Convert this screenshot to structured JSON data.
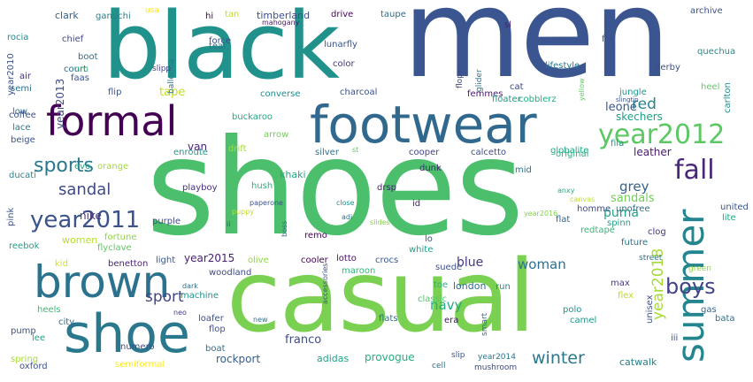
{
  "cloud": {
    "words": [
      {
        "text": "shoes",
        "color": "#4cbf6d",
        "rotate": false
      },
      {
        "text": "men",
        "color": "#3b5590",
        "rotate": false
      },
      {
        "text": "black",
        "color": "#21918c",
        "rotate": false
      },
      {
        "text": "casual",
        "color": "#7ad151",
        "rotate": false
      },
      {
        "text": "footwear",
        "color": "#31688e",
        "rotate": false
      },
      {
        "text": "formal",
        "color": "#440154",
        "rotate": false
      },
      {
        "text": "brown",
        "color": "#2c728e",
        "rotate": false
      },
      {
        "text": "shoe",
        "color": "#2a788e",
        "rotate": false
      },
      {
        "text": "summer",
        "color": "#25858e",
        "rotate": true
      },
      {
        "text": "year2012",
        "color": "#5cc863",
        "rotate": false
      },
      {
        "text": "year2011",
        "color": "#3b528b",
        "rotate": false
      },
      {
        "text": "sports",
        "color": "#29798e",
        "rotate": false
      },
      {
        "text": "fall",
        "color": "#482878",
        "rotate": false
      },
      {
        "text": "sandal",
        "color": "#3e4a89",
        "rotate": false
      },
      {
        "text": "boys",
        "color": "#414487",
        "rotate": false
      },
      {
        "text": "winter",
        "color": "#2a788e",
        "rotate": false
      },
      {
        "text": "year2018",
        "color": "#a5db36",
        "rotate": true
      },
      {
        "text": "sport",
        "color": "#404688",
        "rotate": false
      },
      {
        "text": "navy",
        "color": "#23a983",
        "rotate": false
      },
      {
        "text": "red",
        "color": "#25838e",
        "rotate": false
      },
      {
        "text": "blue",
        "color": "#443983",
        "rotate": false
      },
      {
        "text": "grey",
        "color": "#34618d",
        "rotate": false
      },
      {
        "text": "woman",
        "color": "#2d708e",
        "rotate": false
      },
      {
        "text": "leone",
        "color": "#38588c",
        "rotate": false
      },
      {
        "text": "year2013",
        "color": "#3e4989",
        "rotate": true
      },
      {
        "text": "tape",
        "color": "#c2df23",
        "rotate": false
      },
      {
        "text": "puma",
        "color": "#1f9e89",
        "rotate": false
      },
      {
        "text": "sandals",
        "color": "#70cf57",
        "rotate": false
      },
      {
        "text": "nike",
        "color": "#46327e",
        "rotate": false
      },
      {
        "text": "leather",
        "color": "#481b6d",
        "rotate": false
      },
      {
        "text": "skechers",
        "color": "#1fa088",
        "rotate": false
      },
      {
        "text": "franco",
        "color": "#3e4c8a",
        "rotate": false
      },
      {
        "text": "rockport",
        "color": "#355e8d",
        "rotate": false
      },
      {
        "text": "provogue",
        "color": "#26ad81",
        "rotate": false
      },
      {
        "text": "adidas",
        "color": "#20a486",
        "rotate": false
      },
      {
        "text": "year2015",
        "color": "#482173",
        "rotate": false
      },
      {
        "text": "women",
        "color": "#b5de2b",
        "rotate": false
      },
      {
        "text": "heels",
        "color": "#38b977",
        "rotate": false
      },
      {
        "text": "woodland",
        "color": "#3e4a89",
        "rotate": false
      },
      {
        "text": "london",
        "color": "#2f6c8e",
        "rotate": false
      },
      {
        "text": "khaki",
        "color": "#22a785",
        "rotate": false
      },
      {
        "text": "fila",
        "color": "#1f988b",
        "rotate": false
      },
      {
        "text": "chief",
        "color": "#3f4889",
        "rotate": false
      },
      {
        "text": "clark",
        "color": "#33638d",
        "rotate": false
      },
      {
        "text": "timberland",
        "color": "#3d4e8a",
        "rotate": false
      },
      {
        "text": "van",
        "color": "#482475",
        "rotate": false
      },
      {
        "text": "enroute",
        "color": "#1f9a8a",
        "rotate": false
      },
      {
        "text": "arrow",
        "color": "#73d056",
        "rotate": false
      },
      {
        "text": "buckaroo",
        "color": "#22a884",
        "rotate": false
      },
      {
        "text": "cooper",
        "color": "#414487",
        "rotate": false
      },
      {
        "text": "olive",
        "color": "#90d743",
        "rotate": false
      },
      {
        "text": "cooler",
        "color": "#440154",
        "rotate": false
      },
      {
        "text": "white",
        "color": "#1fa187",
        "rotate": false
      },
      {
        "text": "crocs",
        "color": "#39568c",
        "rotate": false
      },
      {
        "text": "lotto",
        "color": "#471063",
        "rotate": false
      },
      {
        "text": "maroon",
        "color": "#31b57b",
        "rotate": false
      },
      {
        "text": "flats",
        "color": "#2d718e",
        "rotate": false
      },
      {
        "text": "classic",
        "color": "#52c569",
        "rotate": false
      },
      {
        "text": "run",
        "color": "#23898e",
        "rotate": false
      },
      {
        "text": "toe",
        "color": "#29af7f",
        "rotate": false
      },
      {
        "text": "suede",
        "color": "#3c508b",
        "rotate": false
      },
      {
        "text": "era",
        "color": "#481467",
        "rotate": false
      },
      {
        "text": "polo",
        "color": "#20928c",
        "rotate": false
      },
      {
        "text": "camel",
        "color": "#1f988b",
        "rotate": false
      },
      {
        "text": "catwalk",
        "color": "#27808e",
        "rotate": false
      },
      {
        "text": "unisex",
        "color": "#3b528b",
        "rotate": true
      },
      {
        "text": "clog",
        "color": "#46327e",
        "rotate": false
      },
      {
        "text": "spinn",
        "color": "#1fa088",
        "rotate": false
      },
      {
        "text": "future",
        "color": "#2c738e",
        "rotate": false
      },
      {
        "text": "flat",
        "color": "#33638d",
        "rotate": false
      },
      {
        "text": "homme",
        "color": "#3d4d8a",
        "rotate": false
      },
      {
        "text": "redtape",
        "color": "#35b779",
        "rotate": false
      },
      {
        "text": "lifestyle",
        "color": "#2a788e",
        "rotate": false
      },
      {
        "text": "jungle",
        "color": "#1f978b",
        "rotate": false
      },
      {
        "text": "carlton",
        "color": "#218e8d",
        "rotate": true
      },
      {
        "text": "quechua",
        "color": "#228d8d",
        "rotate": false
      },
      {
        "text": "derby",
        "color": "#3d4e8a",
        "rotate": false
      },
      {
        "text": "archive",
        "color": "#3b528b",
        "rotate": false
      },
      {
        "text": "heel",
        "color": "#5ec962",
        "rotate": false
      },
      {
        "text": "lunarfly",
        "color": "#3a548c",
        "rotate": false
      },
      {
        "text": "drive",
        "color": "#450457",
        "rotate": false
      },
      {
        "text": "taupe",
        "color": "#2e6f8e",
        "rotate": false
      },
      {
        "text": "color",
        "color": "#46337f",
        "rotate": false
      },
      {
        "text": "charcoal",
        "color": "#3c4f8a",
        "rotate": false
      },
      {
        "text": "converse",
        "color": "#228c8d",
        "rotate": false
      },
      {
        "text": "femmes",
        "color": "#481769",
        "rotate": false
      },
      {
        "text": "floater",
        "color": "#1f978b",
        "rotate": false
      },
      {
        "text": "cobblerz",
        "color": "#25ac82",
        "rotate": false
      },
      {
        "text": "globalite",
        "color": "#22a785",
        "rotate": false
      },
      {
        "text": "original",
        "color": "#2ab07f",
        "rotate": false
      },
      {
        "text": "calcetto",
        "color": "#3e4c8a",
        "rotate": false
      },
      {
        "text": "silver",
        "color": "#2c728e",
        "rotate": false
      },
      {
        "text": "dunk",
        "color": "#482475",
        "rotate": false
      },
      {
        "text": "mid",
        "color": "#2d718e",
        "rotate": false
      },
      {
        "text": "drsp",
        "color": "#481f70",
        "rotate": false
      },
      {
        "text": "id",
        "color": "#481b6d",
        "rotate": false
      },
      {
        "text": "lo",
        "color": "#3b528b",
        "rotate": false
      },
      {
        "text": "remo",
        "color": "#440154",
        "rotate": false
      },
      {
        "text": "hush",
        "color": "#2db27d",
        "rotate": false
      },
      {
        "text": "playboy",
        "color": "#472d7b",
        "rotate": false
      },
      {
        "text": "purple",
        "color": "#3e4989",
        "rotate": false
      },
      {
        "text": "fortune",
        "color": "#8ed645",
        "rotate": false
      },
      {
        "text": "flyclave",
        "color": "#5dc863",
        "rotate": false
      },
      {
        "text": "benetton",
        "color": "#482475",
        "rotate": false
      },
      {
        "text": "light",
        "color": "#39568c",
        "rotate": false
      },
      {
        "text": "reebok",
        "color": "#1fa088",
        "rotate": false
      },
      {
        "text": "kid",
        "color": "#d8e219",
        "rotate": false
      },
      {
        "text": "pink",
        "color": "#3b528b",
        "rotate": true
      },
      {
        "text": "ducati",
        "color": "#23888e",
        "rotate": false
      },
      {
        "text": "beige",
        "color": "#3a538b",
        "rotate": false
      },
      {
        "text": "lace",
        "color": "#2a788e",
        "rotate": false
      },
      {
        "text": "low",
        "color": "#2c738e",
        "rotate": false
      },
      {
        "text": "coffee",
        "color": "#3c4f8a",
        "rotate": false
      },
      {
        "text": "semi",
        "color": "#2c728e",
        "rotate": false
      },
      {
        "text": "year2010",
        "color": "#3b528b",
        "rotate": true
      },
      {
        "text": "air",
        "color": "#472d7b",
        "rotate": false
      },
      {
        "text": "rocia",
        "color": "#228b8d",
        "rotate": false
      },
      {
        "text": "court",
        "color": "#2f6b8e",
        "rotate": false
      },
      {
        "text": "nm",
        "color": "#37b878",
        "rotate": false
      },
      {
        "text": "boot",
        "color": "#2e6f8e",
        "rotate": false
      },
      {
        "text": "faas",
        "color": "#3a548c",
        "rotate": false
      },
      {
        "text": "flip",
        "color": "#39568c",
        "rotate": false
      },
      {
        "text": "evo",
        "color": "#22a785",
        "rotate": false
      },
      {
        "text": "orange",
        "color": "#a5db36",
        "rotate": false
      },
      {
        "text": "ganuchi",
        "color": "#26818e",
        "rotate": false
      },
      {
        "text": "hi",
        "color": "#440154",
        "rotate": false
      },
      {
        "text": "tan",
        "color": "#c2df23",
        "rotate": false
      },
      {
        "text": "force",
        "color": "#3b528b",
        "rotate": false
      },
      {
        "text": "teal",
        "color": "#2c728e",
        "rotate": false
      },
      {
        "text": "ballerina",
        "color": "#2a768e",
        "rotate": true
      },
      {
        "text": "slipp",
        "color": "#414487",
        "rotate": false
      },
      {
        "text": "usa",
        "color": "#fde725",
        "rotate": false
      },
      {
        "text": "mahogany",
        "color": "#481a6c",
        "rotate": false
      },
      {
        "text": "sl",
        "color": "#482173",
        "rotate": false
      },
      {
        "text": "fly",
        "color": "#3b528b",
        "rotate": false
      },
      {
        "text": "cat",
        "color": "#3f4788",
        "rotate": false
      },
      {
        "text": "glider",
        "color": "#2b758e",
        "rotate": true
      },
      {
        "text": "flops",
        "color": "#3f4889",
        "rotate": true
      },
      {
        "text": "yellow",
        "color": "#5ec962",
        "rotate": true
      },
      {
        "text": "slingtip",
        "color": "#3b528b",
        "rotate": false
      },
      {
        "text": "anxy",
        "color": "#27ad81",
        "rotate": false
      },
      {
        "text": "canvas",
        "color": "#bade28",
        "rotate": false
      },
      {
        "text": "unofree",
        "color": "#2c728e",
        "rotate": false
      },
      {
        "text": "year2016",
        "color": "#84d44b",
        "rotate": false
      },
      {
        "text": "numero",
        "color": "#3e4a89",
        "rotate": false
      },
      {
        "text": "dark",
        "color": "#2d708e",
        "rotate": false
      },
      {
        "text": "machine",
        "color": "#21918c",
        "rotate": false
      },
      {
        "text": "loafer",
        "color": "#3b528b",
        "rotate": false
      },
      {
        "text": "flop",
        "color": "#3b528b",
        "rotate": false
      },
      {
        "text": "boat",
        "color": "#2e6e8e",
        "rotate": false
      },
      {
        "text": "neo",
        "color": "#433e85",
        "rotate": false
      },
      {
        "text": "new",
        "color": "#2c728e",
        "rotate": false
      },
      {
        "text": "city",
        "color": "#2f6c8e",
        "rotate": false
      },
      {
        "text": "lee",
        "color": "#20a486",
        "rotate": false
      },
      {
        "text": "pump",
        "color": "#3a548c",
        "rotate": false
      },
      {
        "text": "spring",
        "color": "#a5db36",
        "rotate": false
      },
      {
        "text": "oxford",
        "color": "#3b528b",
        "rotate": false
      },
      {
        "text": "semiformal",
        "color": "#fde725",
        "rotate": false
      },
      {
        "text": "cell",
        "color": "#2d708e",
        "rotate": false
      },
      {
        "text": "slip",
        "color": "#3b528b",
        "rotate": false
      },
      {
        "text": "year2014",
        "color": "#2a768e",
        "rotate": false
      },
      {
        "text": "mushroom",
        "color": "#3e4989",
        "rotate": false
      },
      {
        "text": "smart",
        "color": "#2f6c8e",
        "rotate": true
      },
      {
        "text": "max",
        "color": "#433e85",
        "rotate": false
      },
      {
        "text": "flex",
        "color": "#bade28",
        "rotate": false
      },
      {
        "text": "street",
        "color": "#2c728e",
        "rotate": false
      },
      {
        "text": "green",
        "color": "#8ed645",
        "rotate": false
      },
      {
        "text": "gas",
        "color": "#31688e",
        "rotate": false
      },
      {
        "text": "bata",
        "color": "#2c728e",
        "rotate": false
      },
      {
        "text": "iii",
        "color": "#3b528b",
        "rotate": false
      },
      {
        "text": "united",
        "color": "#3b528b",
        "rotate": false
      },
      {
        "text": "lite",
        "color": "#20a486",
        "rotate": false
      },
      {
        "text": "accessories",
        "color": "#3b528b",
        "rotate": true
      },
      {
        "text": "puppy",
        "color": "#c2df23",
        "rotate": false
      },
      {
        "text": "ii",
        "color": "#3b528b",
        "rotate": false
      },
      {
        "text": "adi",
        "color": "#2c728e",
        "rotate": false
      },
      {
        "text": "close",
        "color": "#21918c",
        "rotate": false
      },
      {
        "text": "st",
        "color": "#5ec962",
        "rotate": false
      },
      {
        "text": "slides",
        "color": "#84d44b",
        "rotate": false
      },
      {
        "text": "paperone",
        "color": "#3b528b",
        "rotate": false
      },
      {
        "text": "boss",
        "color": "#2c728e",
        "rotate": true
      },
      {
        "text": "drift",
        "color": "#a5db36",
        "rotate": false
      }
    ]
  }
}
